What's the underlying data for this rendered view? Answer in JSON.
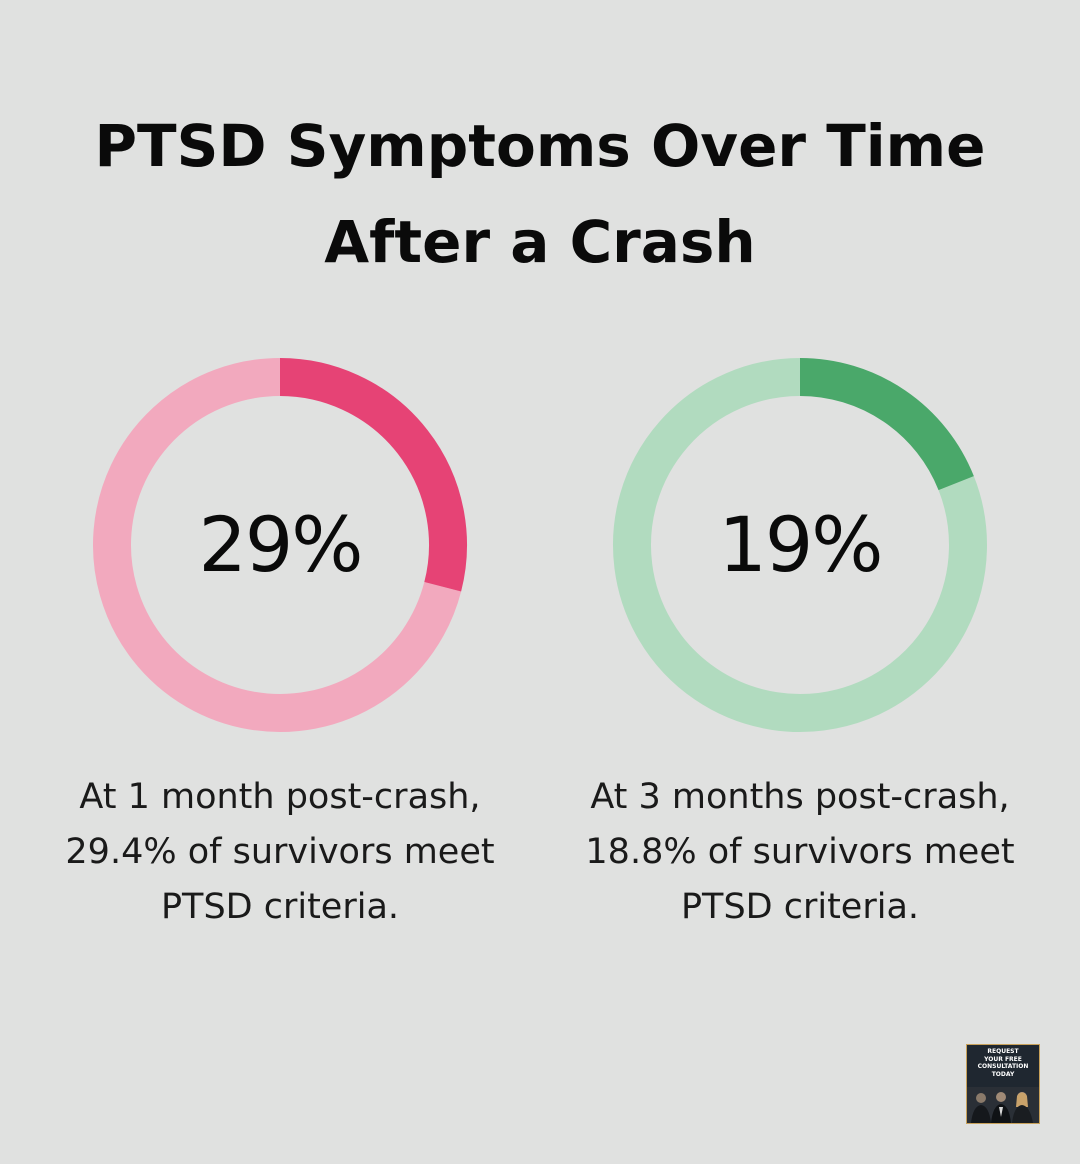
{
  "title": {
    "line1": "PTSD Symptoms Over Time",
    "line2": "After a Crash"
  },
  "colors": {
    "background": "#e0e1e0",
    "pink_light": "#f2a9be",
    "pink_dark": "#e64375",
    "green_light": "#b1dbbf",
    "green_dark": "#4aa86a"
  },
  "chart_data": [
    {
      "type": "pie",
      "variant": "donut",
      "label": "29%",
      "value": 29,
      "slices": [
        {
          "value": 29,
          "color": "#e64375"
        },
        {
          "value": 71,
          "color": "#f2a9be"
        }
      ],
      "caption": [
        "At 1 month post-crash,",
        "29.4% of survivors meet",
        "PTSD criteria."
      ]
    },
    {
      "type": "pie",
      "variant": "donut",
      "label": "19%",
      "value": 19,
      "slices": [
        {
          "value": 19,
          "color": "#4aa86a"
        },
        {
          "value": 81,
          "color": "#b1dbbf"
        }
      ],
      "caption": [
        "At 3 months post-crash,",
        "18.8% of survivors meet",
        "PTSD criteria."
      ]
    }
  ],
  "cta": {
    "lines": [
      "REQUEST",
      "YOUR FREE",
      "CONSULTATION",
      "TODAY"
    ],
    "icon": "team-photo-icon"
  }
}
